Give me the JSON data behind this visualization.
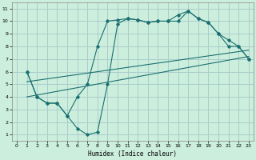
{
  "xlabel": "Humidex (Indice chaleur)",
  "bg_color": "#cceedd",
  "grid_color": "#aacccc",
  "line_color": "#1a7070",
  "xlim": [
    -0.5,
    23.5
  ],
  "ylim": [
    0.5,
    11.5
  ],
  "xticks": [
    0,
    1,
    2,
    3,
    4,
    5,
    6,
    7,
    8,
    9,
    10,
    11,
    12,
    13,
    14,
    15,
    16,
    17,
    18,
    19,
    20,
    21,
    22,
    23
  ],
  "yticks": [
    1,
    2,
    3,
    4,
    5,
    6,
    7,
    8,
    9,
    10,
    11
  ],
  "line1_x": [
    1,
    2,
    3,
    4,
    5,
    6,
    7,
    8,
    9,
    10,
    11,
    12,
    13,
    14,
    15,
    16,
    17,
    18,
    19,
    20,
    21,
    22,
    23
  ],
  "line1_y": [
    6.0,
    4.0,
    3.5,
    3.5,
    2.5,
    1.5,
    1.0,
    1.2,
    5.0,
    9.8,
    10.2,
    10.1,
    9.9,
    10.0,
    10.0,
    10.0,
    10.8,
    10.2,
    9.9,
    9.0,
    8.0,
    8.0,
    7.0
  ],
  "line2_x": [
    1,
    2,
    3,
    4,
    5,
    6,
    7,
    8,
    9,
    10,
    11,
    12,
    13,
    14,
    15,
    16,
    17,
    18,
    19,
    20,
    21,
    22,
    23
  ],
  "line2_y": [
    6.0,
    4.0,
    3.5,
    3.5,
    2.5,
    4.0,
    5.0,
    8.0,
    10.0,
    10.1,
    10.2,
    10.1,
    9.9,
    10.0,
    10.0,
    10.5,
    10.8,
    10.2,
    9.9,
    9.0,
    8.5,
    8.0,
    7.0
  ],
  "line3_x": [
    1,
    23
  ],
  "line3_y": [
    4.0,
    7.2
  ],
  "line4_x": [
    1,
    23
  ],
  "line4_y": [
    5.2,
    7.7
  ]
}
